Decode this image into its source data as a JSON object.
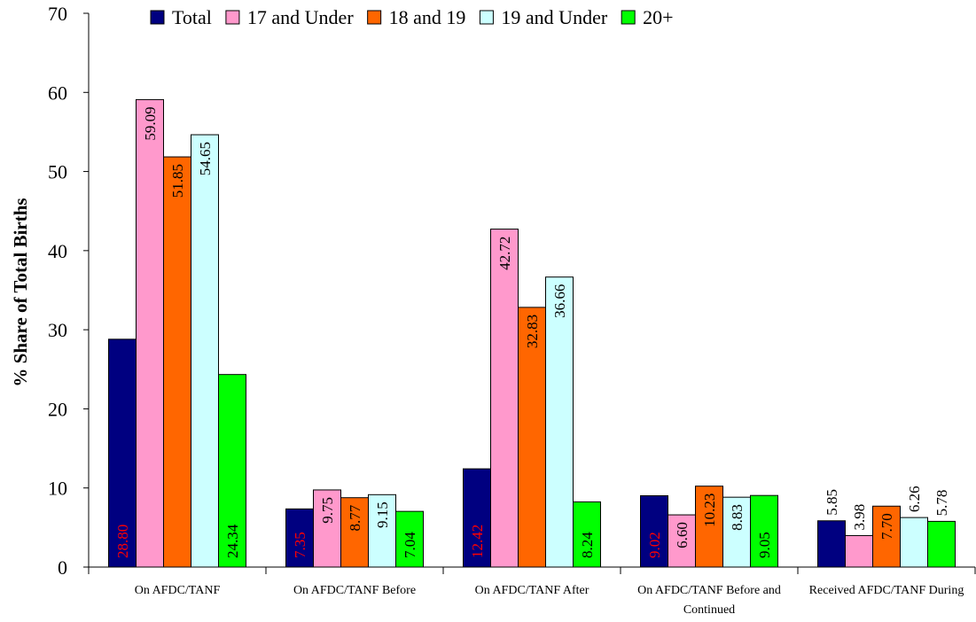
{
  "chart_data": {
    "type": "bar",
    "y_axis_label": "% Share of Total Births",
    "categories": [
      "On AFDC/TANF",
      "On AFDC/TANF Before",
      "On AFDC/TANF After",
      "On AFDC/TANF Before and Continued",
      "Received AFDC/TANF During"
    ],
    "series": [
      {
        "name": "Total",
        "color": "#000080",
        "values": [
          28.8,
          7.35,
          12.42,
          9.02,
          5.85
        ],
        "value_labels": [
          "28.80",
          "7.35",
          "12.42",
          "9.02",
          "5.85"
        ]
      },
      {
        "name": "17 and Under",
        "color": "#ff99cc",
        "values": [
          59.09,
          9.75,
          42.72,
          6.6,
          3.98
        ],
        "value_labels": [
          "59.09",
          "9.75",
          "42.72",
          "6.60",
          "3.98"
        ]
      },
      {
        "name": "18 and 19",
        "color": "#ff6600",
        "values": [
          51.85,
          8.77,
          32.83,
          10.23,
          7.7
        ],
        "value_labels": [
          "51.85",
          "8.77",
          "32.83",
          "10.23",
          "7.70"
        ]
      },
      {
        "name": "19 and Under",
        "color": "#ccffff",
        "values": [
          54.65,
          9.15,
          36.66,
          8.83,
          6.26
        ],
        "value_labels": [
          "54.65",
          "9.15",
          "36.66",
          "8.83",
          "6.26"
        ]
      },
      {
        "name": "20+",
        "color": "#00ff00",
        "values": [
          24.34,
          7.04,
          8.24,
          9.05,
          5.78
        ],
        "value_labels": [
          "24.34",
          "7.04",
          "8.24",
          "9.05",
          "5.78"
        ]
      }
    ],
    "ylim": [
      0,
      70
    ],
    "yticks": [
      0,
      10,
      20,
      30,
      40,
      50,
      60,
      70
    ],
    "legend": "top"
  }
}
